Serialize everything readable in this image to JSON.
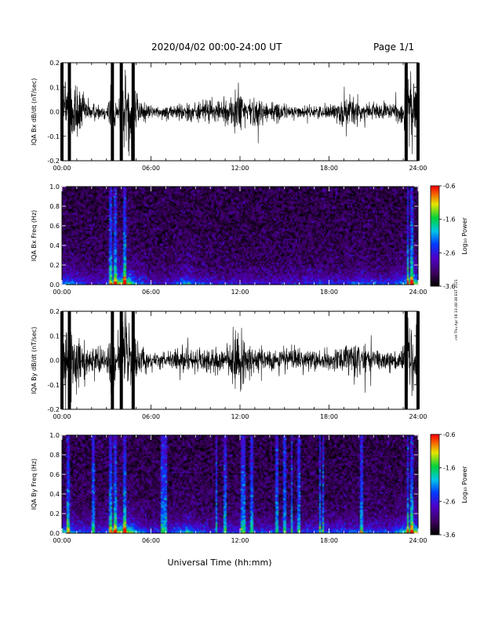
{
  "header": {
    "title": "2020/04/02  00:00-24:00 UT",
    "page": "Page 1/1"
  },
  "side_note": "cnt Thu Apr 08 13:48:38 EST 2021",
  "xlabel": "Universal Time (hh:mm)",
  "x_tick_labels": [
    "00:00",
    "06:00",
    "12:00",
    "18:00",
    "24:00"
  ],
  "colorbar": {
    "label": "Log₁₀ Power",
    "tick_labels": [
      "-0.6",
      "-1.6",
      "-2.6",
      "-3.6"
    ]
  },
  "chart_data": [
    {
      "type": "line",
      "panel_id": "bx_dbdt",
      "ylabel": "IQA Bx dB/dt (nT/sec)",
      "xlim": [
        0,
        24
      ],
      "ylim": [
        -0.2,
        0.2
      ],
      "y_ticks": [
        -0.2,
        -0.1,
        0.0,
        0.1,
        0.2
      ],
      "y_tick_labels": [
        "-0.2",
        "-0.1",
        "0.0",
        "0.1",
        "0.2"
      ],
      "amplitude_envelope": [
        {
          "t": 0.0,
          "a": 0.2
        },
        {
          "t": 0.5,
          "a": 0.2
        },
        {
          "t": 1.0,
          "a": 0.18
        },
        {
          "t": 1.5,
          "a": 0.08
        },
        {
          "t": 2.0,
          "a": 0.05
        },
        {
          "t": 2.5,
          "a": 0.04
        },
        {
          "t": 3.0,
          "a": 0.04
        },
        {
          "t": 3.4,
          "a": 0.2
        },
        {
          "t": 3.7,
          "a": 0.02
        },
        {
          "t": 4.0,
          "a": 0.2
        },
        {
          "t": 4.8,
          "a": 0.2
        },
        {
          "t": 5.2,
          "a": 0.08
        },
        {
          "t": 6.0,
          "a": 0.03
        },
        {
          "t": 7.0,
          "a": 0.03
        },
        {
          "t": 8.0,
          "a": 0.05
        },
        {
          "t": 9.0,
          "a": 0.05
        },
        {
          "t": 10.0,
          "a": 0.06
        },
        {
          "t": 11.0,
          "a": 0.06
        },
        {
          "t": 11.5,
          "a": 0.12
        },
        {
          "t": 12.0,
          "a": 0.13
        },
        {
          "t": 12.5,
          "a": 0.08
        },
        {
          "t": 13.0,
          "a": 0.07
        },
        {
          "t": 14.0,
          "a": 0.06
        },
        {
          "t": 15.0,
          "a": 0.04
        },
        {
          "t": 16.0,
          "a": 0.03
        },
        {
          "t": 17.0,
          "a": 0.03
        },
        {
          "t": 18.0,
          "a": 0.04
        },
        {
          "t": 19.0,
          "a": 0.07
        },
        {
          "t": 19.5,
          "a": 0.09
        },
        {
          "t": 20.0,
          "a": 0.07
        },
        {
          "t": 21.0,
          "a": 0.05
        },
        {
          "t": 22.0,
          "a": 0.04
        },
        {
          "t": 23.0,
          "a": 0.06
        },
        {
          "t": 23.2,
          "a": 0.2
        },
        {
          "t": 24.0,
          "a": 0.2
        }
      ]
    },
    {
      "type": "heatmap",
      "panel_id": "bx_spectrogram",
      "ylabel": "IQA Bx Freq (Hz)",
      "xlim": [
        0,
        24
      ],
      "ylim": [
        0,
        1.0
      ],
      "y_ticks": [
        0.0,
        0.2,
        0.4,
        0.6,
        0.8,
        1.0
      ],
      "y_tick_labels": [
        "0.0",
        "0.2",
        "0.4",
        "0.6",
        "0.8",
        "1.0"
      ],
      "colorbar_range": [
        -3.6,
        -0.6
      ],
      "activity": [
        {
          "t": 0.0,
          "a": 0.5
        },
        {
          "t": 0.5,
          "a": 0.6
        },
        {
          "t": 1.0,
          "a": 0.45
        },
        {
          "t": 2.0,
          "a": 0.3
        },
        {
          "t": 3.0,
          "a": 0.35
        },
        {
          "t": 3.5,
          "a": 0.8
        },
        {
          "t": 4.0,
          "a": 0.95
        },
        {
          "t": 4.5,
          "a": 0.85
        },
        {
          "t": 5.0,
          "a": 0.55
        },
        {
          "t": 6.0,
          "a": 0.3
        },
        {
          "t": 7.0,
          "a": 0.25
        },
        {
          "t": 8.5,
          "a": 0.6
        },
        {
          "t": 9.0,
          "a": 0.4
        },
        {
          "t": 10.0,
          "a": 0.3
        },
        {
          "t": 11.0,
          "a": 0.3
        },
        {
          "t": 12.0,
          "a": 0.3
        },
        {
          "t": 13.0,
          "a": 0.3
        },
        {
          "t": 14.0,
          "a": 0.3
        },
        {
          "t": 15.0,
          "a": 0.3
        },
        {
          "t": 16.0,
          "a": 0.3
        },
        {
          "t": 17.0,
          "a": 0.35
        },
        {
          "t": 18.0,
          "a": 0.35
        },
        {
          "t": 19.0,
          "a": 0.35
        },
        {
          "t": 20.0,
          "a": 0.45
        },
        {
          "t": 21.0,
          "a": 0.4
        },
        {
          "t": 22.0,
          "a": 0.35
        },
        {
          "t": 23.0,
          "a": 0.55
        },
        {
          "t": 23.5,
          "a": 0.95
        },
        {
          "t": 24.0,
          "a": 0.8
        }
      ],
      "vertical_streaks_hours": [
        3.3,
        3.6,
        4.2,
        23.3,
        23.6
      ]
    },
    {
      "type": "line",
      "panel_id": "by_dbdt",
      "ylabel": "IQA By dB/dt (nT/sec)",
      "xlim": [
        0,
        24
      ],
      "ylim": [
        -0.2,
        0.2
      ],
      "y_ticks": [
        -0.2,
        -0.1,
        0.0,
        0.1,
        0.2
      ],
      "y_tick_labels": [
        "-0.2",
        "-0.1",
        "0.0",
        "0.1",
        "0.2"
      ],
      "amplitude_envelope": [
        {
          "t": 0.0,
          "a": 0.2
        },
        {
          "t": 0.5,
          "a": 0.2
        },
        {
          "t": 1.0,
          "a": 0.15
        },
        {
          "t": 1.5,
          "a": 0.1
        },
        {
          "t": 2.0,
          "a": 0.07
        },
        {
          "t": 2.5,
          "a": 0.06
        },
        {
          "t": 3.0,
          "a": 0.05
        },
        {
          "t": 3.4,
          "a": 0.2
        },
        {
          "t": 3.7,
          "a": 0.03
        },
        {
          "t": 4.0,
          "a": 0.2
        },
        {
          "t": 4.8,
          "a": 0.2
        },
        {
          "t": 5.2,
          "a": 0.07
        },
        {
          "t": 6.0,
          "a": 0.04
        },
        {
          "t": 7.0,
          "a": 0.04
        },
        {
          "t": 8.0,
          "a": 0.06
        },
        {
          "t": 9.0,
          "a": 0.06
        },
        {
          "t": 10.0,
          "a": 0.07
        },
        {
          "t": 11.0,
          "a": 0.07
        },
        {
          "t": 11.5,
          "a": 0.15
        },
        {
          "t": 12.0,
          "a": 0.14
        },
        {
          "t": 12.5,
          "a": 0.08
        },
        {
          "t": 13.0,
          "a": 0.07
        },
        {
          "t": 14.0,
          "a": 0.06
        },
        {
          "t": 15.0,
          "a": 0.06
        },
        {
          "t": 16.0,
          "a": 0.06
        },
        {
          "t": 17.0,
          "a": 0.05
        },
        {
          "t": 18.0,
          "a": 0.05
        },
        {
          "t": 19.0,
          "a": 0.07
        },
        {
          "t": 19.5,
          "a": 0.09
        },
        {
          "t": 20.0,
          "a": 0.08
        },
        {
          "t": 21.0,
          "a": 0.06
        },
        {
          "t": 22.0,
          "a": 0.05
        },
        {
          "t": 23.0,
          "a": 0.06
        },
        {
          "t": 23.2,
          "a": 0.2
        },
        {
          "t": 24.0,
          "a": 0.2
        }
      ]
    },
    {
      "type": "heatmap",
      "panel_id": "by_spectrogram",
      "ylabel": "IQA By Freq (Hz)",
      "xlim": [
        0,
        24
      ],
      "ylim": [
        0,
        1.0
      ],
      "y_ticks": [
        0.0,
        0.2,
        0.4,
        0.6,
        0.8,
        1.0
      ],
      "y_tick_labels": [
        "0.0",
        "0.2",
        "0.4",
        "0.6",
        "0.8",
        "1.0"
      ],
      "colorbar_range": [
        -3.6,
        -0.6
      ],
      "activity": [
        {
          "t": 0.0,
          "a": 0.55
        },
        {
          "t": 0.5,
          "a": 0.6
        },
        {
          "t": 1.0,
          "a": 0.5
        },
        {
          "t": 2.0,
          "a": 0.35
        },
        {
          "t": 3.0,
          "a": 0.4
        },
        {
          "t": 3.5,
          "a": 0.85
        },
        {
          "t": 4.0,
          "a": 0.95
        },
        {
          "t": 4.5,
          "a": 0.9
        },
        {
          "t": 5.0,
          "a": 0.6
        },
        {
          "t": 6.0,
          "a": 0.35
        },
        {
          "t": 7.0,
          "a": 0.3
        },
        {
          "t": 8.5,
          "a": 0.65
        },
        {
          "t": 9.0,
          "a": 0.45
        },
        {
          "t": 10.0,
          "a": 0.35
        },
        {
          "t": 11.0,
          "a": 0.35
        },
        {
          "t": 12.0,
          "a": 0.4
        },
        {
          "t": 13.0,
          "a": 0.35
        },
        {
          "t": 14.0,
          "a": 0.35
        },
        {
          "t": 15.0,
          "a": 0.35
        },
        {
          "t": 16.0,
          "a": 0.35
        },
        {
          "t": 17.0,
          "a": 0.4
        },
        {
          "t": 18.0,
          "a": 0.45
        },
        {
          "t": 19.0,
          "a": 0.4
        },
        {
          "t": 20.0,
          "a": 0.45
        },
        {
          "t": 21.0,
          "a": 0.4
        },
        {
          "t": 22.0,
          "a": 0.4
        },
        {
          "t": 23.0,
          "a": 0.6
        },
        {
          "t": 23.5,
          "a": 0.95
        },
        {
          "t": 24.0,
          "a": 0.85
        }
      ],
      "vertical_streaks_hours": [
        0.4,
        2.1,
        3.3,
        3.6,
        4.2,
        6.8,
        7.0,
        10.4,
        11.0,
        12.1,
        12.3,
        12.8,
        14.5,
        15.0,
        15.5,
        16.0,
        17.4,
        17.6,
        20.2,
        23.3,
        23.6
      ]
    }
  ]
}
